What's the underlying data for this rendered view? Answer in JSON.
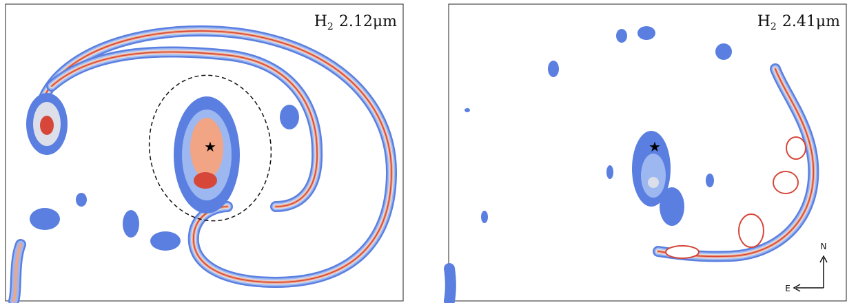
{
  "panels": [
    {
      "label": {
        "base": "H",
        "sub": "2",
        "rest": "2.12μm"
      }
    },
    {
      "label": {
        "base": "H",
        "sub": "2",
        "rest": "2.41μm"
      }
    }
  ],
  "compass": {
    "north": "N",
    "east": "E"
  }
}
